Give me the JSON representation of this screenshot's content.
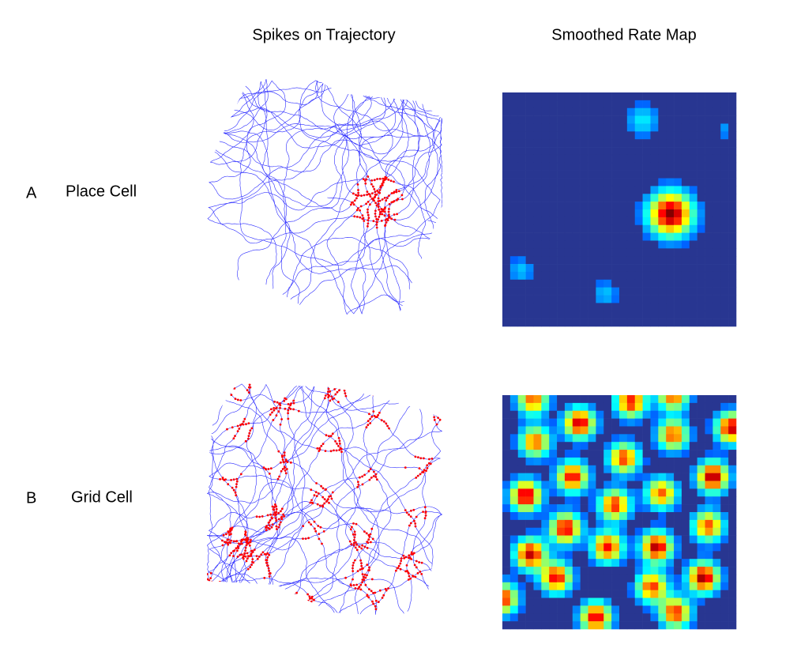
{
  "column_headers": [
    "Spikes on Trajectory",
    "Smoothed Rate Map"
  ],
  "rows": [
    {
      "letter": "A",
      "label": "Place Cell"
    },
    {
      "letter": "B",
      "label": "Grid Cell"
    }
  ]
}
